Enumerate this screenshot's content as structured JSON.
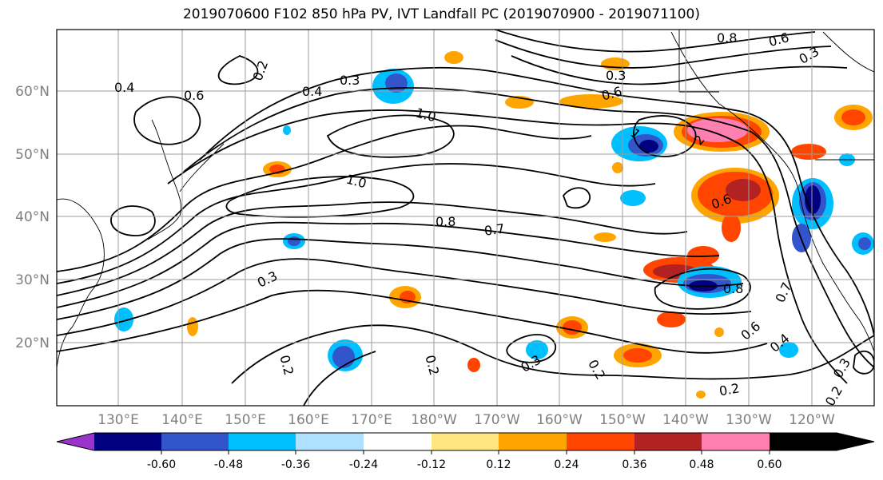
{
  "title": "2019070600 F102 850 hPa PV, IVT Landfall PC (2019070900 - 2019071100)",
  "map": {
    "lon_labels": [
      "130°E",
      "140°E",
      "150°E",
      "160°E",
      "170°E",
      "180°W",
      "170°W",
      "160°W",
      "150°W",
      "140°W",
      "130°W",
      "120°W"
    ],
    "lat_labels": [
      "60°N",
      "50°N",
      "40°N",
      "30°N",
      "20°N"
    ],
    "contour_labels": [
      {
        "text": "0.4"
      },
      {
        "text": "0.6"
      },
      {
        "text": "0.2"
      },
      {
        "text": "0.3"
      },
      {
        "text": "0.4"
      },
      {
        "text": "1.0"
      },
      {
        "text": "1.0"
      },
      {
        "text": "0.8"
      },
      {
        "text": "0.7"
      },
      {
        "text": "0.3"
      },
      {
        "text": "0.2"
      },
      {
        "text": "0.2"
      },
      {
        "text": "0.3"
      },
      {
        "text": "0.2"
      },
      {
        "text": "0.6"
      },
      {
        "text": "0.8"
      },
      {
        "text": "0.7"
      },
      {
        "text": "0.6"
      },
      {
        "text": "0.4"
      },
      {
        "text": "0.2"
      },
      {
        "text": "0.3"
      },
      {
        "text": "0.2"
      },
      {
        "text": "0.3"
      },
      {
        "text": "0.6"
      },
      {
        "text": "0.8"
      },
      {
        "text": "0.6"
      },
      {
        "text": "1"
      },
      {
        "text": "2"
      },
      {
        "text": "0.3"
      }
    ]
  },
  "colorbar": {
    "colors": [
      "#9933cc",
      "#000080",
      "#3355cc",
      "#00bfff",
      "#b0e0ff",
      "#ffffff",
      "#ffe680",
      "#ffa500",
      "#ff4500",
      "#b22222",
      "#ff80b0"
    ],
    "labels": [
      "-0.60",
      "-0.48",
      "-0.36",
      "-0.24",
      "-0.12",
      "0.12",
      "0.24",
      "0.36",
      "0.48",
      "0.60"
    ]
  }
}
